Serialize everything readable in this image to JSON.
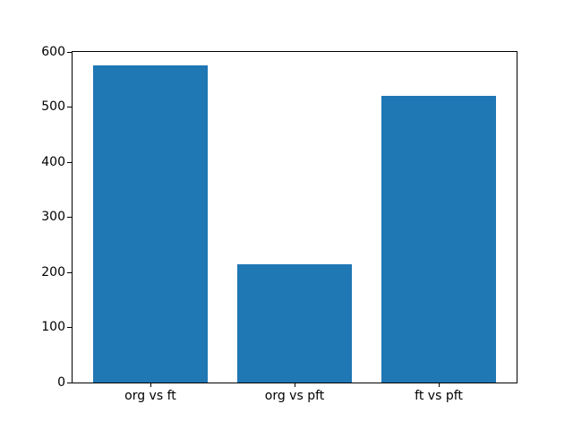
{
  "chart_data": {
    "type": "bar",
    "categories": [
      "org vs ft",
      "org vs pft",
      "ft vs pft"
    ],
    "values": [
      575,
      214,
      520
    ],
    "title": "",
    "xlabel": "",
    "ylabel": "",
    "ylim": [
      0,
      600
    ],
    "yticks": [
      0,
      100,
      200,
      300,
      400,
      500,
      600
    ],
    "ytick_labels": [
      "0",
      "100",
      "200",
      "300",
      "400",
      "500",
      "600"
    ],
    "bar_width_units": 0.8,
    "x_margin": 0.05,
    "grid": false,
    "legend": null,
    "bar_color": "#1f77b4"
  },
  "colors": {
    "bar": "#1f77b4",
    "background": "#ffffff",
    "spine": "#000000",
    "text": "#000000"
  }
}
